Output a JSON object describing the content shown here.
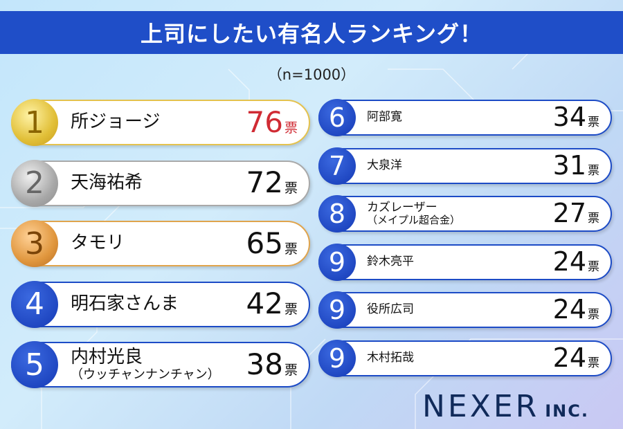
{
  "title": "上司にしたい有名人ランキング！",
  "subtitle": "（n=1000）",
  "logo": {
    "main": "NEXER",
    "suffix": "INC."
  },
  "chart_data": {
    "type": "table",
    "unit": "票",
    "rows": [
      {
        "rank": "1",
        "name": "所ジョージ",
        "sub": "",
        "votes": 76,
        "medal": "gold"
      },
      {
        "rank": "2",
        "name": "天海祐希",
        "sub": "",
        "votes": 72,
        "medal": "silver"
      },
      {
        "rank": "3",
        "name": "タモリ",
        "sub": "",
        "votes": 65,
        "medal": "bronze"
      },
      {
        "rank": "4",
        "name": "明石家さんま",
        "sub": "",
        "votes": 42,
        "medal": "blue"
      },
      {
        "rank": "5",
        "name": "内村光良",
        "sub": "（ウッチャンナンチャン）",
        "votes": 38,
        "medal": "blue"
      },
      {
        "rank": "6",
        "name": "阿部寛",
        "sub": "",
        "votes": 34,
        "medal": "blue"
      },
      {
        "rank": "7",
        "name": "大泉洋",
        "sub": "",
        "votes": 31,
        "medal": "blue"
      },
      {
        "rank": "8",
        "name": "カズレーザー",
        "sub": "（メイプル超合金）",
        "votes": 27,
        "medal": "blue"
      },
      {
        "rank": "9",
        "name": "鈴木亮平",
        "sub": "",
        "votes": 24,
        "medal": "blue"
      },
      {
        "rank": "9",
        "name": "役所広司",
        "sub": "",
        "votes": 24,
        "medal": "blue"
      },
      {
        "rank": "9",
        "name": "木村拓哉",
        "sub": "",
        "votes": 24,
        "medal": "blue"
      }
    ]
  }
}
